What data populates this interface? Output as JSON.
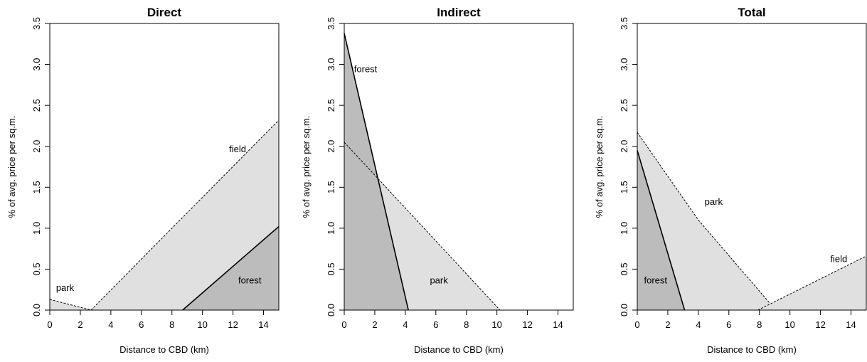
{
  "chart_data": [
    {
      "type": "area",
      "title": "Direct",
      "xlabel": "Distance to CBD (km)",
      "ylabel": "% of avg. price per sq.m.",
      "xlim": [
        0,
        15
      ],
      "ylim": [
        0,
        3.5
      ],
      "xticks": [
        0,
        2,
        4,
        6,
        8,
        10,
        12,
        14
      ],
      "xtick_labels": [
        "0",
        "2",
        "4",
        "6",
        "8",
        "10",
        "12",
        "14"
      ],
      "yticks": [
        0,
        0.5,
        1,
        1.5,
        2,
        2.5,
        3,
        3.5
      ],
      "ytick_labels": [
        "0.0",
        "0.5",
        "1.0",
        "1.5",
        "2.0",
        "2.5",
        "3.0",
        "3.5"
      ],
      "grid": false,
      "series": [
        {
          "name": "park",
          "line": "dashed",
          "fill": "#e0e0e0",
          "points": [
            [
              0,
              0.13
            ],
            [
              2.7,
              0
            ]
          ],
          "label_at": [
            1.0,
            0.28
          ]
        },
        {
          "name": "field",
          "line": "dashed",
          "fill": "#e0e0e0",
          "points": [
            [
              2.7,
              0
            ],
            [
              15,
              2.32
            ]
          ],
          "label_at": [
            12.3,
            1.97
          ]
        },
        {
          "name": "forest",
          "line": "solid",
          "fill": "#bcbcbc",
          "points": [
            [
              8.7,
              0
            ],
            [
              15,
              1.02
            ]
          ],
          "label_at": [
            13.1,
            0.37
          ]
        }
      ]
    },
    {
      "type": "area",
      "title": "Indirect",
      "xlabel": "Distance to CBD (km)",
      "ylabel": "% of avg. price per sq.m.",
      "xlim": [
        0,
        15
      ],
      "ylim": [
        0,
        3.5
      ],
      "xticks": [
        0,
        2,
        4,
        6,
        8,
        10,
        12,
        14
      ],
      "xtick_labels": [
        "0",
        "2",
        "4",
        "6",
        "8",
        "10",
        "12",
        "14"
      ],
      "yticks": [
        0,
        0.5,
        1,
        1.5,
        2,
        2.5,
        3,
        3.5
      ],
      "ytick_labels": [
        "0.0",
        "0.5",
        "1.0",
        "1.5",
        "2.0",
        "2.5",
        "3.0",
        "3.5"
      ],
      "grid": false,
      "series": [
        {
          "name": "park",
          "line": "dashed",
          "fill": "#e0e0e0",
          "points": [
            [
              0,
              2.05
            ],
            [
              10.2,
              0
            ]
          ],
          "label_at": [
            6.2,
            0.37
          ]
        },
        {
          "name": "forest",
          "line": "solid",
          "fill": "#bcbcbc",
          "points": [
            [
              0,
              3.38
            ],
            [
              4.2,
              0
            ]
          ],
          "label_at": [
            1.4,
            2.95
          ]
        }
      ]
    },
    {
      "type": "area",
      "title": "Total",
      "xlabel": "Distance to CBD (km)",
      "ylabel": "% of avg. price per sq.m.",
      "xlim": [
        0,
        15
      ],
      "ylim": [
        0,
        3.5
      ],
      "xticks": [
        0,
        2,
        4,
        6,
        8,
        10,
        12,
        14
      ],
      "xtick_labels": [
        "0",
        "2",
        "4",
        "6",
        "8",
        "10",
        "12",
        "14"
      ],
      "yticks": [
        0,
        0.5,
        1,
        1.5,
        2,
        2.5,
        3,
        3.5
      ],
      "ytick_labels": [
        "0.0",
        "0.5",
        "1.0",
        "1.5",
        "2.0",
        "2.5",
        "3.0",
        "3.5"
      ],
      "grid": false,
      "series": [
        {
          "name": "park",
          "line": "dashed",
          "fill": "#e0e0e0",
          "points": [
            [
              0,
              2.17
            ],
            [
              4,
              1.1
            ],
            [
              8.7,
              0.08
            ]
          ],
          "label_at": [
            5.0,
            1.33
          ]
        },
        {
          "name": "field",
          "line": "dashed",
          "fill": "#e0e0e0",
          "points": [
            [
              7.9,
              0
            ],
            [
              15,
              0.66
            ]
          ],
          "label_at": [
            13.2,
            0.63
          ]
        },
        {
          "name": "forest",
          "line": "solid",
          "fill": "#bcbcbc",
          "points": [
            [
              0,
              1.95
            ],
            [
              3.1,
              0
            ]
          ],
          "label_at": [
            1.2,
            0.37
          ]
        }
      ]
    }
  ]
}
